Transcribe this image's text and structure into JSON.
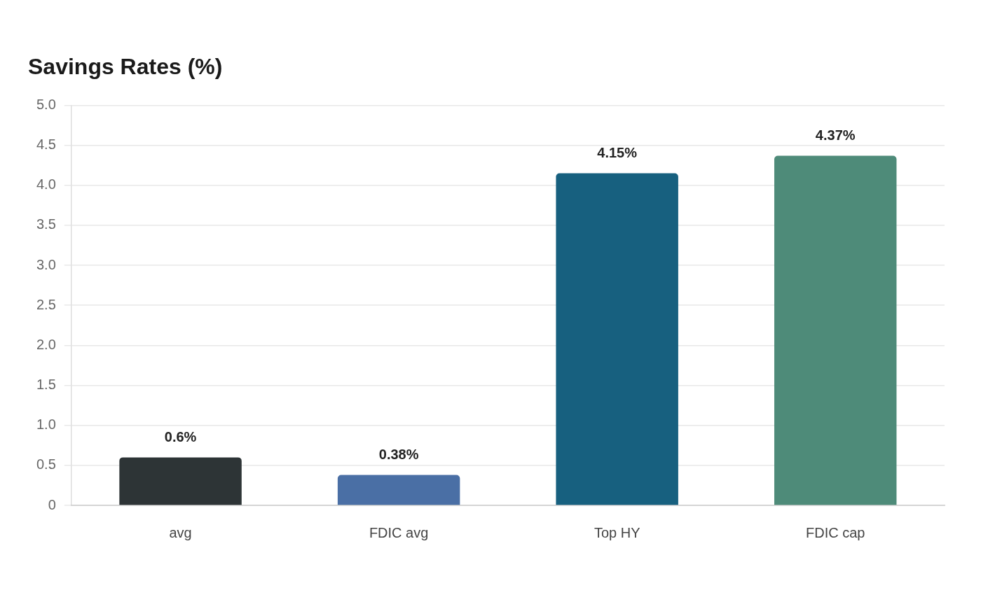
{
  "chart_data": {
    "type": "bar",
    "title": "Savings Rates (%)",
    "categories": [
      "avg",
      "FDIC avg",
      "Top HY",
      "FDIC cap"
    ],
    "values": [
      0.6,
      0.38,
      4.15,
      4.37
    ],
    "colors": [
      "#2d3436",
      "#4a6fa5",
      "#17607f",
      "#4e8b79"
    ],
    "value_labels": [
      "0.6%",
      "0.38%",
      "4.15%",
      "4.37%"
    ],
    "ylim": [
      0,
      5
    ],
    "yticks": [
      0,
      {
        "value": 0.5,
        "label": "0.5"
      },
      {
        "value": 1,
        "label": "1.0"
      },
      {
        "value": 1.5,
        "label": "1.5"
      },
      {
        "value": 2,
        "label": "2.0"
      },
      {
        "value": 2.5,
        "label": "2.5"
      },
      {
        "value": 3,
        "label": "3.0"
      },
      {
        "value": 3.5,
        "label": "3.5"
      },
      {
        "value": 4,
        "label": "4.0"
      },
      {
        "value": 4.5,
        "label": "4.5"
      },
      {
        "value": 5,
        "label": "5.0"
      }
    ],
    "grid": "y",
    "legend": false
  }
}
